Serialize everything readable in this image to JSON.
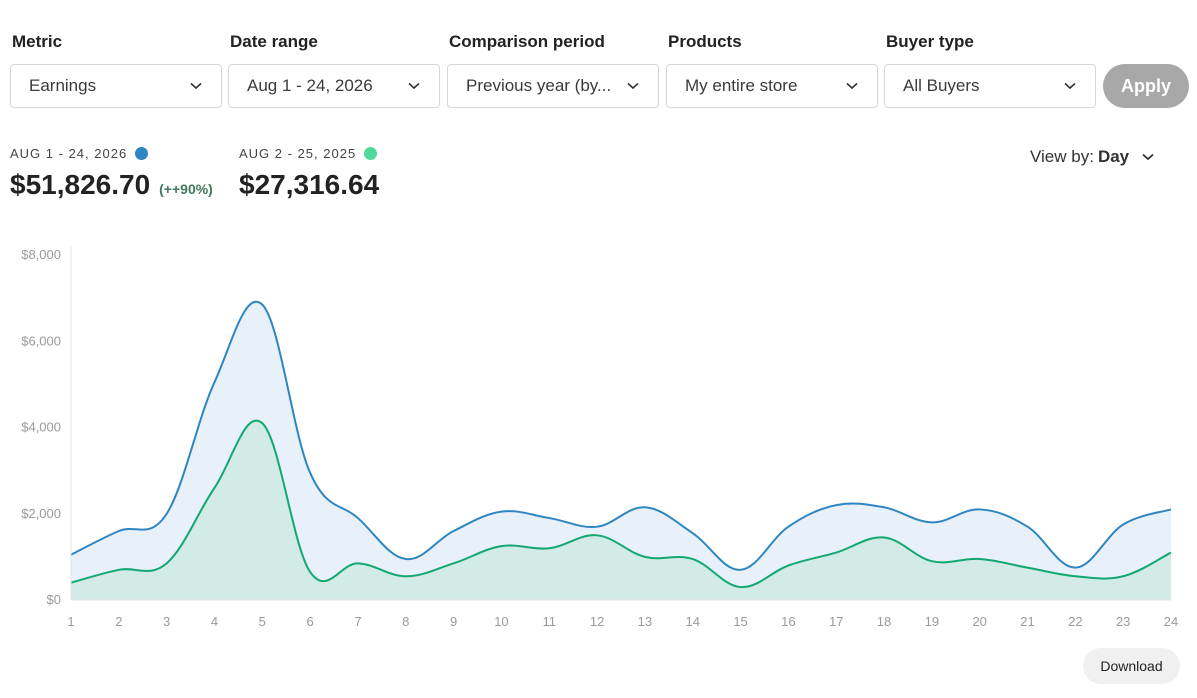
{
  "filters": [
    {
      "label": "Metric",
      "value": "Earnings"
    },
    {
      "label": "Date range",
      "value": "Aug 1 - 24, 2026"
    },
    {
      "label": "Comparison period",
      "value": "Previous year (by..."
    },
    {
      "label": "Products",
      "value": "My entire store"
    },
    {
      "label": "Buyer type",
      "value": "All Buyers"
    }
  ],
  "apply_label": "Apply",
  "summary": {
    "current": {
      "range": "AUG 1 - 24, 2026",
      "value": "$51,826.70",
      "change": "(++90%)",
      "color": "#2d86c1"
    },
    "previous": {
      "range": "AUG 2 - 25, 2025",
      "value": "$27,316.64",
      "color": "#4fd99a"
    }
  },
  "view_by": {
    "label": "View by:",
    "value": "Day"
  },
  "download_label": "Download",
  "chart_data": {
    "type": "area",
    "x": [
      1,
      2,
      3,
      4,
      5,
      6,
      7,
      8,
      9,
      10,
      11,
      12,
      13,
      14,
      15,
      16,
      17,
      18,
      19,
      20,
      21,
      22,
      23,
      24
    ],
    "ylim": [
      0,
      8000
    ],
    "ytick_labels": [
      "$0",
      "$2,000",
      "$4,000",
      "$6,000",
      "$8,000"
    ],
    "grid": false,
    "series": [
      {
        "name": "AUG 1 - 24, 2026",
        "color": "#2d86c1",
        "fill": "#e8f1f9",
        "values": [
          1050,
          1600,
          2000,
          5050,
          6850,
          2950,
          1900,
          950,
          1600,
          2050,
          1900,
          1700,
          2150,
          1550,
          700,
          1700,
          2200,
          2150,
          1800,
          2100,
          1700,
          750,
          1750,
          2100
        ]
      },
      {
        "name": "AUG 2 - 25, 2025",
        "color": "#14a871",
        "fill": "#d2ebe7",
        "values": [
          400,
          700,
          850,
          2600,
          4100,
          650,
          850,
          550,
          850,
          1250,
          1200,
          1500,
          1000,
          950,
          300,
          800,
          1100,
          1450,
          900,
          950,
          750,
          550,
          550,
          1100
        ]
      }
    ]
  }
}
